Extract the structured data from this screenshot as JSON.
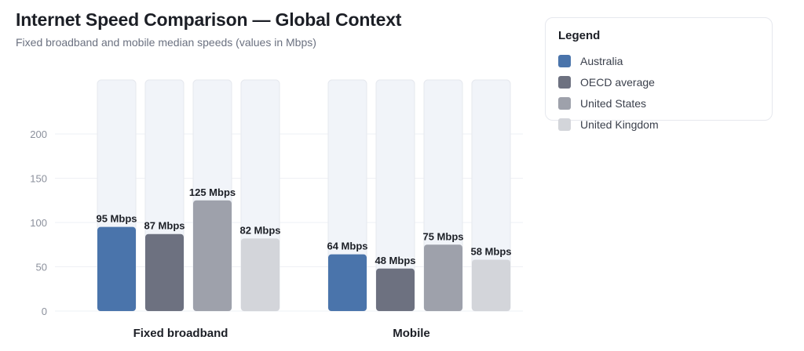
{
  "header": {
    "title": "Internet Speed Comparison — Global Context",
    "subtitle": "Fixed broadband and mobile median speeds (values in Mbps)"
  },
  "legend": {
    "title": "Legend",
    "items": [
      {
        "label": "Australia",
        "color": "#4a74ab"
      },
      {
        "label": "OECD average",
        "color": "#6d7180"
      },
      {
        "label": "United States",
        "color": "#9ea1ab"
      },
      {
        "label": "United Kingdom",
        "color": "#d3d5da"
      }
    ]
  },
  "chart_data": {
    "type": "bar",
    "categories": [
      "Fixed broadband",
      "Mobile"
    ],
    "series": [
      {
        "name": "Australia",
        "values": [
          95,
          64
        ],
        "labels": [
          "95 Mbps",
          "64 Mbps"
        ],
        "color": "#4a74ab"
      },
      {
        "name": "OECD average",
        "values": [
          87,
          48
        ],
        "labels": [
          "87 Mbps",
          "48 Mbps"
        ],
        "color": "#6d7180"
      },
      {
        "name": "United States",
        "values": [
          125,
          75
        ],
        "labels": [
          "125 Mbps",
          "75 Mbps"
        ],
        "color": "#9ea1ab"
      },
      {
        "name": "United Kingdom",
        "values": [
          82,
          58
        ],
        "labels": [
          "82 Mbps",
          "58 Mbps"
        ],
        "color": "#d3d5da"
      }
    ],
    "y_ticks": [
      "0",
      "50",
      "100",
      "150",
      "200"
    ],
    "title": "Internet Speed Comparison — Global Context",
    "legend_position": "top-right",
    "grid": true
  }
}
